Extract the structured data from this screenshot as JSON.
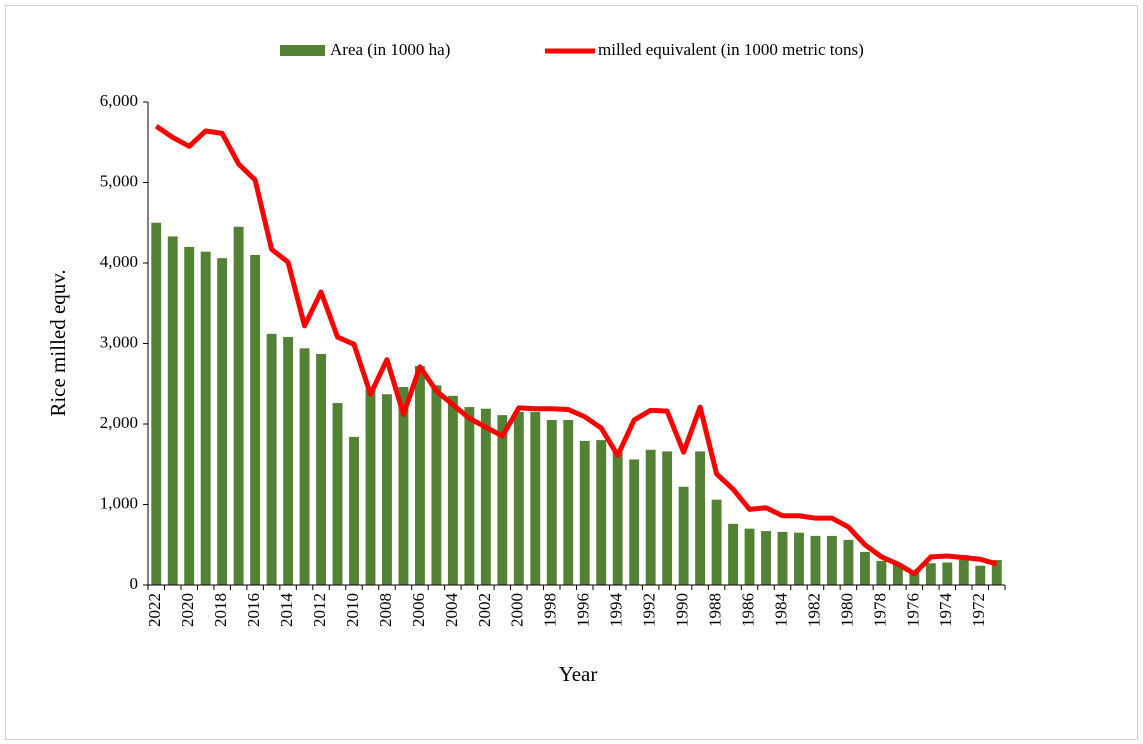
{
  "chart_data": {
    "type": "combo",
    "y_label": "Rice milled equv.",
    "x_label": "Year",
    "categories": [
      "2022",
      null,
      "2020",
      null,
      "2018",
      null,
      "2016",
      null,
      "2014",
      null,
      "2012",
      null,
      "2010",
      null,
      "2008",
      null,
      "2006",
      null,
      "2004",
      null,
      "2002",
      null,
      "2000",
      null,
      "1998",
      null,
      "1996",
      null,
      "1994",
      null,
      "1992",
      null,
      "1990",
      null,
      "1988",
      null,
      "1986",
      null,
      "1984",
      null,
      "1982",
      null,
      "1980",
      null,
      "1978",
      null,
      "1976",
      null,
      "1974",
      null,
      "1972",
      null
    ],
    "series": [
      {
        "name": "Area (in 1000 ha)",
        "type": "bar",
        "color": "#548235",
        "values": [
          4500,
          4330,
          4200,
          4140,
          4060,
          4450,
          4100,
          3120,
          3080,
          2940,
          2870,
          2260,
          1840,
          2430,
          2370,
          2460,
          2720,
          2480,
          2350,
          2210,
          2190,
          2110,
          2150,
          2150,
          2050,
          2050,
          1790,
          1800,
          1650,
          1560,
          1680,
          1660,
          1220,
          1660,
          1060,
          760,
          700,
          670,
          660,
          650,
          610,
          610,
          560,
          410,
          300,
          270,
          160,
          270,
          280,
          370,
          240,
          310
        ]
      },
      {
        "name": "milled equivalent (in 1000 metric tons)",
        "type": "line",
        "color": "#ff0000",
        "values": [
          5700,
          5560,
          5450,
          5640,
          5610,
          5230,
          5030,
          4170,
          4010,
          3220,
          3640,
          3080,
          2990,
          2370,
          2800,
          2120,
          2710,
          2410,
          2240,
          2070,
          1960,
          1850,
          2200,
          2190,
          2190,
          2180,
          2090,
          1950,
          1610,
          2050,
          2170,
          2160,
          1650,
          2210,
          1380,
          1190,
          940,
          960,
          860,
          860,
          830,
          830,
          720,
          500,
          350,
          260,
          140,
          350,
          360,
          340,
          320,
          260
        ]
      }
    ],
    "ylim": [
      0,
      6000
    ],
    "yticks": [
      0,
      {
        "value": 1000,
        "label": "1,000"
      },
      {
        "value": 2000,
        "label": "2,000"
      },
      {
        "value": 3000,
        "label": "3,000"
      },
      {
        "value": 4000,
        "label": "4,000"
      },
      {
        "value": 5000,
        "label": "5,000"
      },
      {
        "value": 6000,
        "label": "6,000"
      }
    ],
    "grid": false,
    "legend": "top"
  }
}
